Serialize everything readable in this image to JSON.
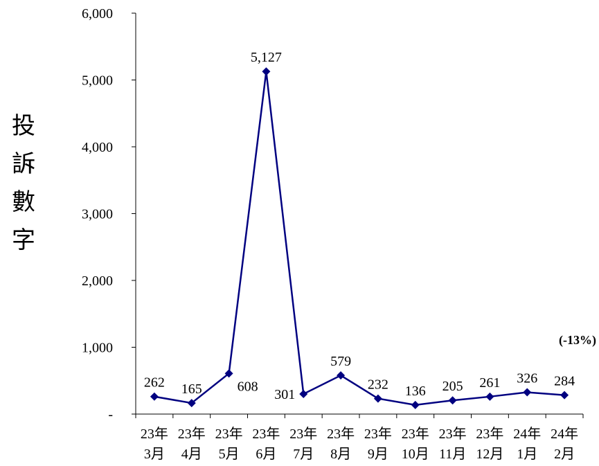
{
  "chart_data": {
    "type": "line",
    "ylabel": "投訴數字",
    "ylim": [
      0,
      6000
    ],
    "yticks": [
      0,
      1000,
      2000,
      3000,
      4000,
      5000,
      6000
    ],
    "ytick_labels": [
      "-",
      "1,000",
      "2,000",
      "3,000",
      "4,000",
      "5,000",
      "6,000"
    ],
    "categories": [
      [
        "23年",
        "3月"
      ],
      [
        "23年",
        "4月"
      ],
      [
        "23年",
        "5月"
      ],
      [
        "23年",
        "6月"
      ],
      [
        "23年",
        "7月"
      ],
      [
        "23年",
        "8月"
      ],
      [
        "23年",
        "9月"
      ],
      [
        "23年",
        "10月"
      ],
      [
        "23年",
        "11月"
      ],
      [
        "23年",
        "12月"
      ],
      [
        "24年",
        "1月"
      ],
      [
        "24年",
        "2月"
      ]
    ],
    "series": [
      {
        "values": [
          262,
          165,
          608,
          5127,
          301,
          579,
          232,
          136,
          205,
          261,
          326,
          284
        ]
      }
    ],
    "value_labels": [
      "262",
      "165",
      "608",
      "5,127",
      "301",
      "579",
      "232",
      "136",
      "205",
      "261",
      "326",
      "284"
    ],
    "annotation": "(-13%)",
    "grid": false,
    "color": "#000080"
  }
}
